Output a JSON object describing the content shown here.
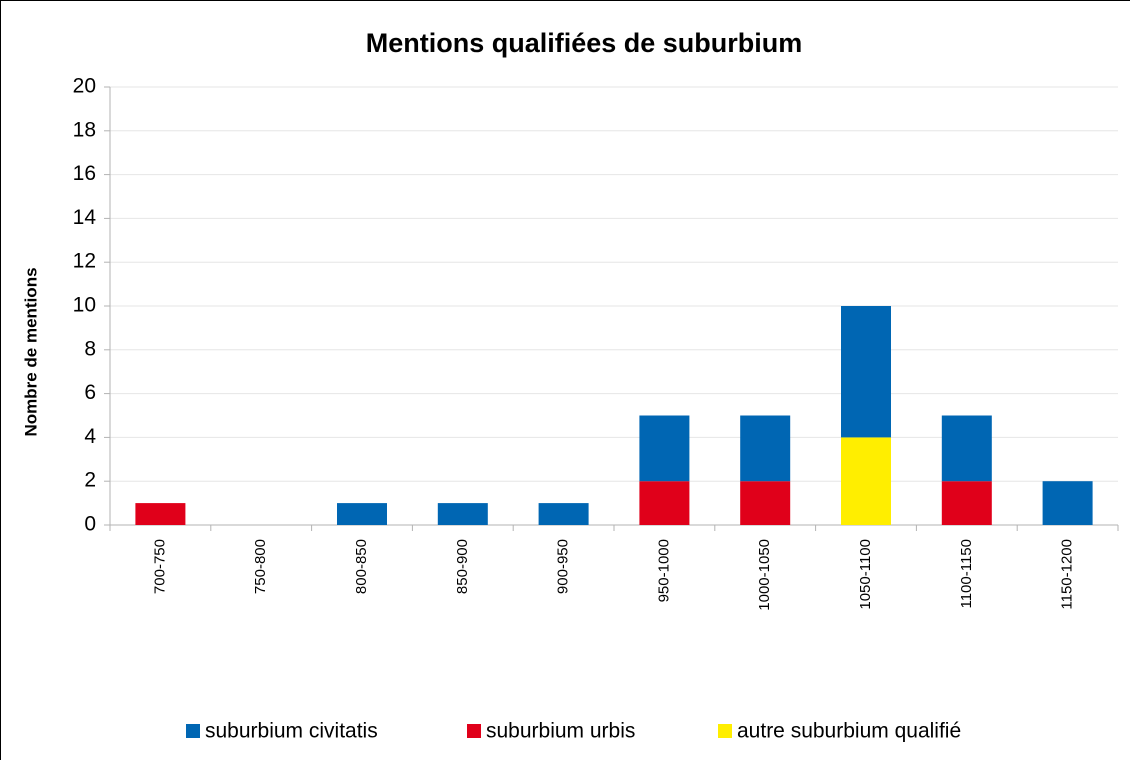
{
  "chart_data": {
    "type": "stacked_bar",
    "title": "Mentions qualifiées de suburbium",
    "y_label": "Nombre de mentions",
    "categories": [
      "700-750",
      "750-800",
      "800-850",
      "850-900",
      "900-950",
      "950-1000",
      "1000-1050",
      "1050-1100",
      "1100-1150",
      "1150-1200"
    ],
    "series": [
      {
        "name": "suburbium civitatis",
        "color": "#0066b3",
        "values": [
          0,
          0,
          1,
          1,
          1,
          3,
          3,
          6,
          3,
          2
        ]
      },
      {
        "name": "suburbium urbis",
        "color": "#e0001a",
        "values": [
          1,
          0,
          0,
          0,
          0,
          2,
          2,
          0,
          2,
          0
        ]
      },
      {
        "name": "autre suburbium qualifié",
        "color": "#ffee00",
        "values": [
          0,
          0,
          0,
          0,
          0,
          0,
          0,
          4,
          0,
          0
        ]
      }
    ],
    "ylim": [
      0,
      20
    ],
    "yticks": [
      0,
      2,
      4,
      6,
      8,
      10,
      12,
      14,
      16,
      18,
      20
    ],
    "grid": true,
    "legend": "bottom"
  }
}
